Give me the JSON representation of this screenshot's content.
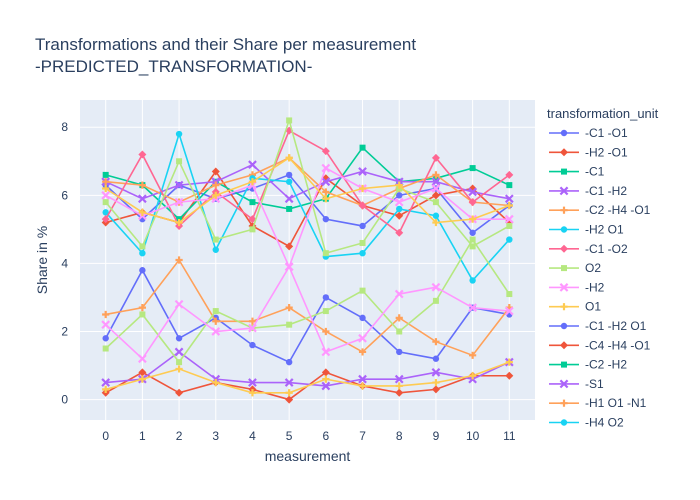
{
  "chart_data": {
    "type": "line",
    "title_line1": "Transformations and their Share per measurement",
    "title_line2": "-PREDICTED_TRANSFORMATION-",
    "xlabel": "measurement",
    "ylabel": "Share in %",
    "legend_title": "transformation_unit",
    "legend_placement": "right",
    "grid": true,
    "background_color": "#e5ecf6",
    "x": [
      0,
      1,
      2,
      3,
      4,
      5,
      6,
      7,
      8,
      9,
      10,
      11
    ],
    "x_ticks": [
      "0",
      "1",
      "2",
      "3",
      "4",
      "5",
      "6",
      "7",
      "8",
      "9",
      "10",
      "11"
    ],
    "y_ticks": [
      "0",
      "2",
      "4",
      "6",
      "8"
    ],
    "xlim": [
      -0.7,
      11.7
    ],
    "ylim": [
      -0.6,
      8.8
    ],
    "series": [
      {
        "name": "-C1 -O1",
        "color": "#636efa",
        "marker": "circle",
        "values": [
          6.3,
          5.3,
          6.3,
          5.9,
          6.2,
          6.6,
          5.3,
          5.1,
          6.0,
          6.2,
          4.9,
          5.7
        ]
      },
      {
        "name": "-H2 -O1",
        "color": "#EF553B",
        "marker": "diamond",
        "values": [
          5.2,
          5.5,
          5.2,
          6.7,
          5.1,
          4.5,
          6.5,
          5.7,
          5.4,
          6.0,
          6.2,
          5.2
        ]
      },
      {
        "name": "-C1",
        "color": "#00cc96",
        "marker": "square",
        "values": [
          6.6,
          6.3,
          5.3,
          6.4,
          5.8,
          5.6,
          5.9,
          7.4,
          6.4,
          6.5,
          6.8,
          6.3
        ]
      },
      {
        "name": "-C1 -H2",
        "color": "#ab63fa",
        "marker": "x",
        "values": [
          6.4,
          5.9,
          6.3,
          6.4,
          6.9,
          5.9,
          6.4,
          6.7,
          6.4,
          6.4,
          6.1,
          5.9
        ]
      },
      {
        "name": "-C2 -H4 -O1",
        "color": "#FFA15A",
        "marker": "cross",
        "values": [
          6.4,
          6.3,
          5.8,
          6.3,
          6.6,
          7.1,
          6.1,
          5.7,
          6.2,
          6.6,
          5.8,
          5.7
        ]
      },
      {
        "name": "-H2 O1",
        "color": "#19d3f3",
        "marker": "circle",
        "values": [
          5.5,
          4.3,
          7.8,
          4.4,
          6.5,
          6.4,
          4.2,
          4.3,
          5.6,
          5.4,
          3.5,
          4.7
        ]
      },
      {
        "name": "-C1 -O2",
        "color": "#FF6692",
        "marker": "diamond",
        "values": [
          5.3,
          7.2,
          5.1,
          6.1,
          5.3,
          7.9,
          7.3,
          5.7,
          4.9,
          7.1,
          5.8,
          6.6
        ]
      },
      {
        "name": "O2",
        "color": "#B6E880",
        "marker": "square",
        "values": [
          5.8,
          4.5,
          7.0,
          4.7,
          5.0,
          8.2,
          4.3,
          4.6,
          6.2,
          5.8,
          4.5,
          5.1
        ]
      },
      {
        "name": "-H2",
        "color": "#FF97FF",
        "marker": "x",
        "values": [
          6.0,
          5.4,
          5.8,
          5.9,
          6.3,
          3.9,
          6.8,
          6.2,
          5.8,
          6.2,
          5.3,
          5.3
        ]
      },
      {
        "name": "O1",
        "color": "#FECB52",
        "marker": "cross",
        "values": [
          6.2,
          5.5,
          5.2,
          6.0,
          6.4,
          7.1,
          5.9,
          6.2,
          6.3,
          5.2,
          5.3,
          5.7
        ]
      },
      {
        "name": "-C1 -H2 O1",
        "color": "#636efa",
        "marker": "circle",
        "values": [
          1.8,
          3.8,
          1.8,
          2.4,
          1.6,
          1.1,
          3.0,
          2.4,
          1.4,
          1.2,
          2.7,
          2.5
        ]
      },
      {
        "name": "-C4 -H4 -O1",
        "color": "#EF553B",
        "marker": "diamond",
        "values": [
          0.2,
          0.8,
          0.2,
          0.5,
          0.3,
          0.0,
          0.8,
          0.4,
          0.2,
          0.3,
          0.7,
          0.7
        ]
      },
      {
        "name": "-C2 -H2",
        "color": "#00cc96",
        "marker": "square",
        "values": [
          null,
          null,
          null,
          null,
          null,
          null,
          null,
          null,
          null,
          null,
          null,
          null
        ]
      },
      {
        "name": "-S1",
        "color": "#ab63fa",
        "marker": "x",
        "values": [
          0.5,
          0.6,
          1.4,
          0.6,
          0.5,
          0.5,
          0.4,
          0.6,
          0.6,
          0.8,
          0.6,
          1.1
        ]
      },
      {
        "name": "-H1 O1 -N1",
        "color": "#FFA15A",
        "marker": "cross",
        "values": [
          2.5,
          2.7,
          4.1,
          2.3,
          2.3,
          2.7,
          2.0,
          1.4,
          2.4,
          1.7,
          1.3,
          2.7
        ]
      },
      {
        "name": "-H4 O2",
        "color": "#19d3f3",
        "marker": "circle",
        "values": [
          null,
          null,
          null,
          null,
          null,
          null,
          null,
          null,
          null,
          null,
          null,
          null
        ]
      },
      {
        "name": "",
        "color": "#B6E880",
        "marker": "square",
        "values": [
          1.5,
          2.5,
          1.1,
          2.6,
          2.1,
          2.2,
          2.6,
          3.2,
          2.0,
          2.9,
          4.7,
          3.1
        ]
      },
      {
        "name": "",
        "color": "#FF97FF",
        "marker": "x",
        "values": [
          2.2,
          1.2,
          2.8,
          2.0,
          2.1,
          3.9,
          1.4,
          1.8,
          3.1,
          3.3,
          2.7,
          2.6
        ]
      },
      {
        "name": "",
        "color": "#FECB52",
        "marker": "cross",
        "values": [
          0.3,
          0.6,
          0.9,
          0.5,
          0.2,
          0.2,
          0.6,
          0.4,
          0.4,
          0.5,
          0.7,
          1.1
        ]
      }
    ],
    "legend_visible_count": 16
  }
}
